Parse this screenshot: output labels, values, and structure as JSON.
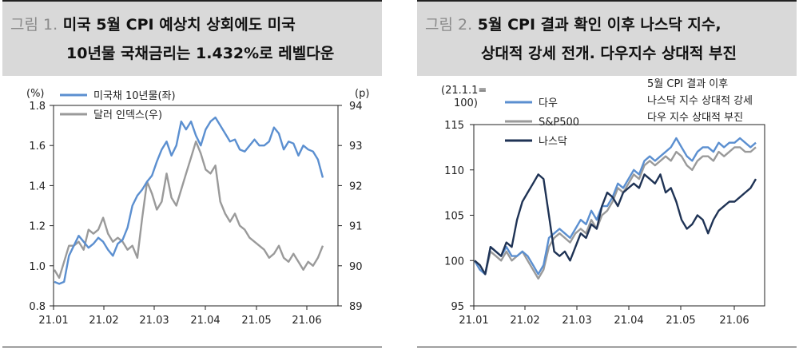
{
  "panel1": {
    "title_num": "그림 1.",
    "title_line1": "미국 5월 CPI 예상치 상회에도 미국",
    "title_line2": "10년물 국채금리는 1.432%로 레벨다운",
    "left_unit": "(%)",
    "right_unit": "(p)"
  },
  "panel2": {
    "title_num": "그림 2.",
    "title_line1": "5월 CPI 결과 확인 이후 나스닥 지수,",
    "title_line2": "상대적 강세 전개. 다우지수 상대적 부진",
    "axis_unit_line1": "(21.1.1=",
    "axis_unit_line2": "100)",
    "annotation": [
      "5월 CPI 결과 이후",
      "나스닥 지수 상대적 강세",
      "다우 지수 상대적 부진"
    ]
  },
  "colors": {
    "blue": "#5b8fd0",
    "gray": "#9a9a9a",
    "navy": "#1f3355",
    "header_bg": "#d9d9d9"
  },
  "chart_data": [
    {
      "type": "line",
      "x_ticks": [
        "21.01",
        "21.02",
        "21.03",
        "21.04",
        "21.05",
        "21.06"
      ],
      "y_left": {
        "lim": [
          0.8,
          1.8
        ],
        "ticks": [
          "0.8",
          "1.0",
          "1.2",
          "1.4",
          "1.6",
          "1.8"
        ]
      },
      "y_right": {
        "lim": [
          89,
          94
        ],
        "ticks": [
          "89",
          "90",
          "91",
          "92",
          "93",
          "94"
        ]
      },
      "legend_position": "top-left",
      "series": [
        {
          "name": "미국채 10년물(좌)",
          "color": "#5b8fd0",
          "axis": "left",
          "values": [
            0.92,
            0.91,
            0.92,
            1.05,
            1.1,
            1.15,
            1.12,
            1.09,
            1.11,
            1.14,
            1.12,
            1.08,
            1.05,
            1.11,
            1.13,
            1.19,
            1.3,
            1.35,
            1.38,
            1.42,
            1.45,
            1.52,
            1.58,
            1.62,
            1.55,
            1.6,
            1.72,
            1.68,
            1.72,
            1.65,
            1.6,
            1.68,
            1.72,
            1.74,
            1.7,
            1.66,
            1.62,
            1.63,
            1.58,
            1.57,
            1.6,
            1.63,
            1.6,
            1.6,
            1.62,
            1.69,
            1.66,
            1.58,
            1.62,
            1.61,
            1.55,
            1.6,
            1.58,
            1.57,
            1.53,
            1.44
          ]
        },
        {
          "name": "달러 인덱스(우)",
          "color": "#9a9a9a",
          "axis": "right",
          "values": [
            89.9,
            89.7,
            90.1,
            90.5,
            90.5,
            90.6,
            90.4,
            90.9,
            90.8,
            90.9,
            91.2,
            90.8,
            90.6,
            90.7,
            90.6,
            90.4,
            90.5,
            90.2,
            91.2,
            92.1,
            91.8,
            91.4,
            91.6,
            92.3,
            91.7,
            91.5,
            91.9,
            92.3,
            92.7,
            93.1,
            92.8,
            92.4,
            92.3,
            92.5,
            91.6,
            91.3,
            91.1,
            91.3,
            91.0,
            90.9,
            90.7,
            90.6,
            90.5,
            90.4,
            90.2,
            90.3,
            90.5,
            90.2,
            90.1,
            90.3,
            90.1,
            89.9,
            90.1,
            90.0,
            90.2,
            90.5
          ]
        }
      ]
    },
    {
      "type": "line",
      "x_ticks": [
        "21.01",
        "21.02",
        "21.03",
        "21.04",
        "21.05",
        "21.06"
      ],
      "y": {
        "lim": [
          95,
          115
        ],
        "ticks": [
          "95",
          "100",
          "105",
          "110",
          "115"
        ]
      },
      "legend_position": "top-left",
      "series": [
        {
          "name": "다우",
          "color": "#5b8fd0",
          "values": [
            100,
            99,
            98.5,
            101.5,
            101.0,
            100.5,
            101.5,
            100.5,
            100.5,
            101.0,
            100.5,
            99.5,
            98.5,
            99.5,
            102.5,
            103.0,
            103.5,
            103.0,
            102.5,
            103.5,
            104.5,
            104.0,
            105.5,
            104.5,
            106.0,
            106.0,
            107.0,
            108.5,
            108.0,
            109.0,
            110.0,
            109.5,
            111.0,
            111.5,
            111.0,
            111.5,
            112.0,
            112.5,
            113.5,
            112.5,
            111.5,
            111.0,
            112.0,
            112.5,
            112.5,
            112.0,
            113.0,
            112.5,
            113.0,
            113.0,
            113.5,
            113.0,
            112.5,
            113.0
          ]
        },
        {
          "name": "S&P500",
          "color": "#9a9a9a",
          "values": [
            100,
            99,
            98.5,
            101.0,
            100.5,
            100.0,
            101.0,
            100.0,
            100.5,
            101.0,
            100.0,
            99.0,
            98.0,
            99.0,
            101.5,
            102.5,
            103.0,
            102.5,
            102.0,
            103.0,
            103.5,
            103.0,
            104.5,
            103.5,
            105.0,
            105.5,
            106.5,
            108.0,
            107.5,
            108.5,
            109.5,
            109.0,
            110.5,
            111.0,
            110.5,
            111.0,
            111.5,
            111.0,
            112.0,
            111.5,
            110.5,
            110.0,
            111.0,
            111.5,
            111.5,
            111.0,
            112.0,
            111.5,
            112.0,
            112.5,
            112.5,
            112.0,
            112.0,
            112.5
          ]
        },
        {
          "name": "나스닥",
          "color": "#1f3355",
          "values": [
            100,
            99.5,
            98.5,
            101.5,
            101.0,
            100.5,
            102.0,
            101.5,
            104.5,
            106.5,
            107.5,
            108.5,
            109.5,
            109.0,
            105.0,
            101.0,
            100.5,
            101.0,
            100.0,
            101.5,
            103.0,
            102.5,
            104.0,
            103.5,
            106.0,
            107.5,
            107.0,
            106.0,
            107.5,
            108.0,
            108.5,
            108.0,
            109.5,
            109.0,
            108.5,
            109.5,
            107.5,
            108.0,
            106.5,
            104.5,
            103.5,
            104.0,
            105.0,
            104.5,
            103.0,
            104.5,
            105.5,
            106.0,
            106.5,
            106.5,
            107.0,
            107.5,
            108.0,
            109.0
          ]
        }
      ]
    }
  ]
}
